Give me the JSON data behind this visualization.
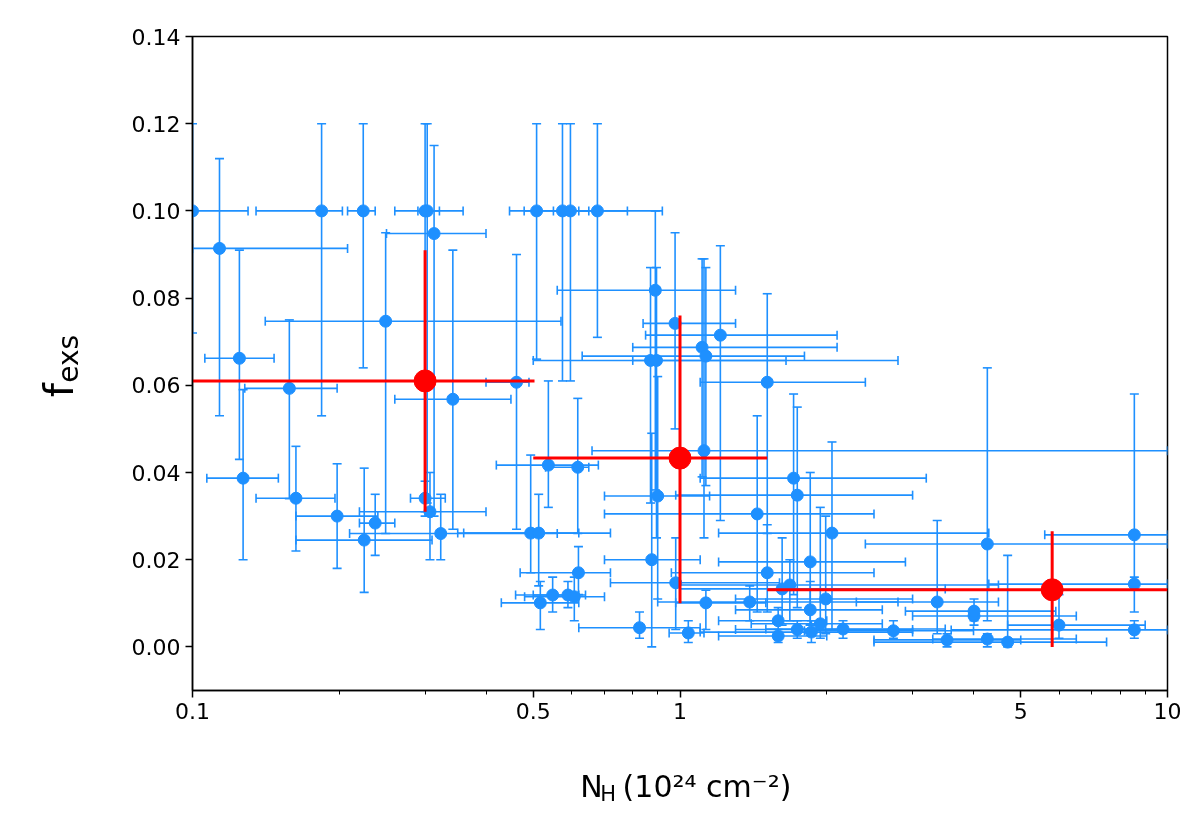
{
  "chart_data": {
    "type": "scatter",
    "xlabel": "N$_{H}$ (10²⁴ cm⁻²)",
    "ylabel": "f$_{exs}$",
    "log": "x",
    "grid": false,
    "marker": "circle",
    "xlim": [
      0.1,
      10
    ],
    "xticks": [
      0.1,
      0.5,
      1,
      5,
      10
    ],
    "ylim": [
      -0.01,
      0.14
    ],
    "yticks": [
      {
        "value": 0,
        "label": "0.00"
      },
      {
        "value": 0.02,
        "label": "0.02"
      },
      {
        "value": 0.04,
        "label": "0.04"
      },
      {
        "value": 0.06,
        "label": "0.06"
      },
      {
        "value": 0.08,
        "label": "0.08"
      },
      {
        "value": 0.1,
        "label": "0.10"
      },
      {
        "value": 0.12,
        "label": "0.12"
      },
      {
        "value": 0.14,
        "label": "0.14"
      }
    ],
    "series": [
      {
        "color": "#1e90ff",
        "x": [
          0.1,
          0.184,
          0.224,
          0.3,
          0.303,
          0.508,
          0.574,
          0.596,
          0.677,
          0.1136,
          0.1248,
          0.127,
          0.158,
          0.163,
          0.198,
          0.225,
          0.237,
          0.249,
          0.3,
          0.307,
          0.313,
          0.323,
          0.342,
          0.462,
          0.494,
          0.513,
          0.537,
          0.617,
          0.517,
          0.548,
          0.589,
          0.607,
          0.619,
          0.826,
          0.875,
          0.87,
          0.895,
          0.89,
          0.9,
          0.977,
          0.98,
          1.04,
          1.11,
          1.13,
          1.12,
          1.21,
          1.13,
          1.39,
          1.44,
          1.51,
          1.51,
          1.59,
          1.59,
          1.62,
          1.68,
          1.71,
          1.74,
          1.74,
          1.85,
          1.85,
          1.86,
          1.94,
          1.99,
          2.05,
          2.16,
          2.74,
          3.37,
          3.53,
          4.01,
          4.01,
          4.27,
          4.27,
          4.7,
          5.99,
          8.55,
          8.55,
          8.55
        ],
        "values": [
          0.1,
          0.1,
          0.1,
          0.1,
          0.1,
          0.1,
          0.1,
          0.1,
          0.1,
          0.0914,
          0.0662,
          0.0387,
          0.0593,
          0.0341,
          0.03,
          0.0245,
          0.0284,
          0.0747,
          0.0341,
          0.031,
          0.0948,
          0.026,
          0.0568,
          0.0607,
          0.0261,
          0.0261,
          0.0417,
          0.0412,
          0.0101,
          0.0119,
          0.0119,
          0.0115,
          0.017,
          0.0044,
          0.02,
          0.0657,
          0.0657,
          0.0818,
          0.0346,
          0.0742,
          0.0147,
          0.0032,
          0.0687,
          0.0667,
          0.045,
          0.0715,
          0.0101,
          0.0103,
          0.0305,
          0.0607,
          0.017,
          0.006,
          0.0025,
          0.0133,
          0.0142,
          0.0387,
          0.0348,
          0.004,
          0.0195,
          0.0085,
          0.0034,
          0.0053,
          0.011,
          0.0261,
          0.0041,
          0.0037,
          0.0103,
          0.0016,
          0.0071,
          0.0082,
          0.0236,
          0.0018,
          0.0011,
          0.005,
          0.0257,
          0.0144,
          0.0039
        ],
        "xerrors": [
          [
            0.1,
            0.13
          ],
          [
            0.135,
            0.203
          ],
          [
            0.208,
            0.237
          ],
          [
            0.26,
            0.321
          ],
          [
            0.29,
            0.359
          ],
          [
            0.447,
            0.57
          ],
          [
            0.479,
            0.65
          ],
          [
            0.55,
            0.78
          ],
          [
            0.62,
            0.92
          ],
          [
            0.1,
            0.208
          ],
          [
            0.106,
            0.147
          ],
          [
            0.107,
            0.15
          ],
          [
            0.128,
            0.198
          ],
          [
            0.135,
            0.196
          ],
          [
            0.163,
            0.24
          ],
          [
            0.163,
            0.31
          ],
          [
            0.22,
            0.26
          ],
          [
            0.141,
            0.57
          ],
          [
            0.28,
            0.33
          ],
          [
            0.22,
            0.4
          ],
          [
            0.25,
            0.4
          ],
          [
            0.21,
            0.56
          ],
          [
            0.26,
            0.45
          ],
          [
            0.4,
            0.49
          ],
          [
            0.35,
            0.72
          ],
          [
            0.36,
            0.62
          ],
          [
            0.42,
            0.68
          ],
          [
            0.53,
            0.65
          ],
          [
            0.43,
            0.62
          ],
          [
            0.46,
            0.62
          ],
          [
            0.5,
            0.64
          ],
          [
            0.48,
            0.7
          ],
          [
            0.47,
            0.72
          ],
          [
            0.62,
            1.1
          ],
          [
            0.7,
            1.1
          ],
          [
            0.8,
            1.65
          ],
          [
            0.5,
            2.8
          ],
          [
            0.56,
            1.3
          ],
          [
            0.7,
            1.15
          ],
          [
            0.84,
            1.3
          ],
          [
            0.72,
            1.6
          ],
          [
            0.95,
            1.12
          ],
          [
            0.8,
            2.1
          ],
          [
            0.63,
            1.8
          ],
          [
            0.66,
            10
          ],
          [
            0.85,
            2.1
          ],
          [
            0.98,
            1.5
          ],
          [
            0.9,
            2.8
          ],
          [
            0.7,
            2.5
          ],
          [
            1.1,
            2.4
          ],
          [
            0.96,
            2.5
          ],
          [
            1.2,
            2.0
          ],
          [
            1.2,
            2.0
          ],
          [
            1.0,
            3.5
          ],
          [
            1.0,
            4.5
          ],
          [
            1.1,
            3.2
          ],
          [
            0.98,
            3.0
          ],
          [
            1.3,
            3.0
          ],
          [
            1.2,
            2.9
          ],
          [
            1.3,
            2.6
          ],
          [
            1.1,
            3.0
          ],
          [
            1.4,
            2.6
          ],
          [
            1.3,
            3.0
          ],
          [
            1.2,
            4.3
          ],
          [
            1.5,
            3.5
          ],
          [
            1.8,
            4.0
          ],
          [
            2.3,
            4.5
          ],
          [
            2.5,
            5.0
          ],
          [
            3.0,
            6.5
          ],
          [
            2.9,
            5.9
          ],
          [
            2.4,
            10
          ],
          [
            3.3,
            6.5
          ],
          [
            2.5,
            7.5
          ],
          [
            4.7,
            9.0
          ],
          [
            5.6,
            10
          ],
          [
            4.3,
            10
          ],
          [
            3.6,
            10
          ]
        ],
        "errors": [
          [
            0.072,
            0.12
          ],
          [
            0.053,
            0.12
          ],
          [
            0.064,
            0.12
          ],
          [
            0.031,
            0.12
          ],
          [
            0.033,
            0.12
          ],
          [
            0.066,
            0.12
          ],
          [
            0.061,
            0.12
          ],
          [
            0.061,
            0.12
          ],
          [
            0.071,
            0.12
          ],
          [
            0.053,
            0.112
          ],
          [
            0.043,
            0.091
          ],
          [
            0.02,
            0.059
          ],
          [
            0.034,
            0.075
          ],
          [
            0.022,
            0.046
          ],
          [
            0.018,
            0.042
          ],
          [
            0.0125,
            0.041
          ],
          [
            0.021,
            0.035
          ],
          [
            0.026,
            0.095
          ],
          [
            0.03,
            0.038
          ],
          [
            0.02,
            0.04
          ],
          [
            0.03,
            0.115
          ],
          [
            0.02,
            0.035
          ],
          [
            0.027,
            0.091
          ],
          [
            0.027,
            0.09
          ],
          [
            0.017,
            0.044
          ],
          [
            0.014,
            0.035
          ],
          [
            0.032,
            0.061
          ],
          [
            0.026,
            0.057
          ],
          [
            0.004,
            0.015
          ],
          [
            0.008,
            0.016
          ],
          [
            0.009,
            0.015
          ],
          [
            0.006,
            0.016
          ],
          [
            0.012,
            0.023
          ],
          [
            0.002,
            0.008
          ],
          [
            0.0,
            0.049
          ],
          [
            0.033,
            0.087
          ],
          [
            0.025,
            0.087
          ],
          [
            0.036,
            0.1
          ],
          [
            0.011,
            0.062
          ],
          [
            0.05,
            0.095
          ],
          [
            0.004,
            0.025
          ],
          [
            0.001,
            0.006
          ],
          [
            0.039,
            0.089
          ],
          [
            0.037,
            0.087
          ],
          [
            0.025,
            0.089
          ],
          [
            0.029,
            0.092
          ],
          [
            0.004,
            0.013
          ],
          [
            0.006,
            0.014
          ],
          [
            0.008,
            0.053
          ],
          [
            0.026,
            0.081
          ],
          [
            0.008,
            0.028
          ],
          [
            0.002,
            0.009
          ],
          [
            0.001,
            0.004
          ],
          [
            0.005,
            0.025
          ],
          [
            0.006,
            0.02
          ],
          [
            0.012,
            0.058
          ],
          [
            0.009,
            0.055
          ],
          [
            0.002,
            0.006
          ],
          [
            0.005,
            0.04
          ],
          [
            0.005,
            0.015
          ],
          [
            0.001,
            0.006
          ],
          [
            0.002,
            0.032
          ],
          [
            0.003,
            0.03
          ],
          [
            0.004,
            0.047
          ],
          [
            0.002,
            0.006
          ],
          [
            0.002,
            0.006
          ],
          [
            0.003,
            0.029
          ],
          [
            0.0,
            0.003
          ],
          [
            0.005,
            0.009
          ],
          [
            0.006,
            0.011
          ],
          [
            0.006,
            0.064
          ],
          [
            0.0,
            0.003
          ],
          [
            0.0,
            0.021
          ],
          [
            0.002,
            0.012
          ],
          [
            0.014,
            0.058
          ],
          [
            0.008,
            0.016
          ],
          [
            0.002,
            0.006
          ]
        ]
      },
      {
        "color": "#ff0000",
        "x": [
          0.3,
          1,
          5.8
        ],
        "values": [
          0.061,
          0.0433,
          0.0131
        ],
        "xerrors": [
          [
            0.1,
            0.503
          ],
          [
            0.5,
            1.51
          ],
          [
            1.51,
            10
          ]
        ],
        "errors": [
          [
            0.031,
            0.091
          ],
          [
            0.01,
            0.076
          ],
          [
            0.0,
            0.0265
          ]
        ]
      }
    ]
  }
}
